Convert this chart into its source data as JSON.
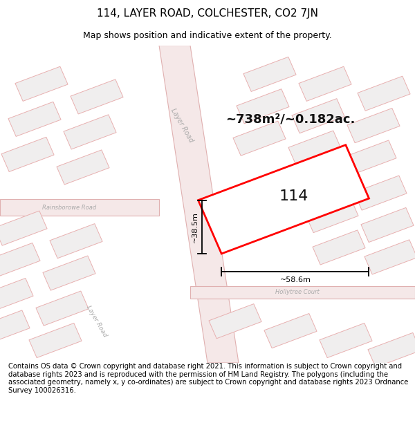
{
  "title": "114, LAYER ROAD, COLCHESTER, CO2 7JN",
  "subtitle": "Map shows position and indicative extent of the property.",
  "area_label": "~738m²/~0.182ac.",
  "plot_number": "114",
  "dim_width": "~58.6m",
  "dim_height": "~38.5m",
  "footer_text": "Contains OS data © Crown copyright and database right 2021. This information is subject to Crown copyright and database rights 2023 and is reproduced with the permission of HM Land Registry. The polygons (including the associated geometry, namely x, y co-ordinates) are subject to Crown copyright and database rights 2023 Ordnance Survey 100026316.",
  "map_bg": "#f2f0f0",
  "road_fill": "#f5e8e8",
  "road_edge": "#e0b0b0",
  "bld_fill": "#f0eeee",
  "bld_edge": "#e8b0b0",
  "plot_edge": "#ff0000",
  "dim_color": "#000000",
  "road_label_color": "#aaaaaa",
  "title_fontsize": 11,
  "subtitle_fontsize": 9,
  "footer_fontsize": 7.2,
  "area_fontsize": 13,
  "plot_num_fontsize": 16,
  "dim_fontsize": 8
}
